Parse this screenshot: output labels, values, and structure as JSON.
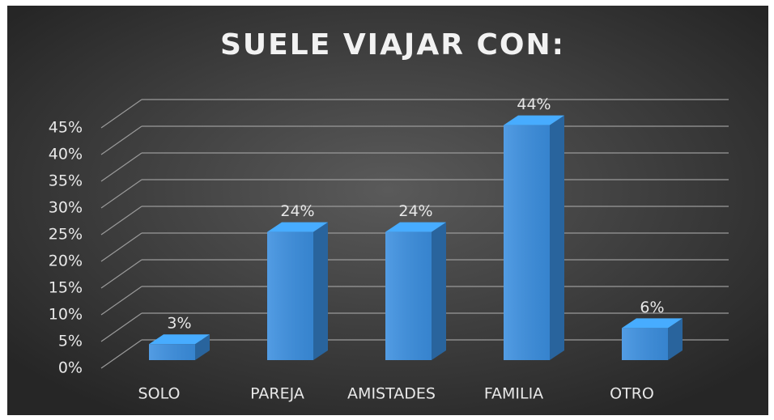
{
  "chart_data": {
    "type": "bar3d",
    "title": "SUELE VIAJAR CON:",
    "categories": [
      "SOLO",
      "PAREJA",
      "AMISTADES",
      "FAMILIA",
      "OTRO"
    ],
    "values": [
      3,
      24,
      24,
      44,
      6
    ],
    "value_labels": [
      "3%",
      "24%",
      "24%",
      "44%",
      "6%"
    ],
    "color": "#3b8fe0",
    "ylim": [
      0,
      45
    ],
    "yticks": [
      {
        "value": 0,
        "label": "0%"
      },
      {
        "value": 5,
        "label": "5%"
      },
      {
        "value": 10,
        "label": "10%"
      },
      {
        "value": 15,
        "label": "15%"
      },
      {
        "value": 20,
        "label": "20%"
      },
      {
        "value": 25,
        "label": "25%"
      },
      {
        "value": 30,
        "label": "30%"
      },
      {
        "value": 35,
        "label": "35%"
      },
      {
        "value": 40,
        "label": "40%"
      },
      {
        "value": 45,
        "label": "45%"
      }
    ],
    "grid": true
  }
}
